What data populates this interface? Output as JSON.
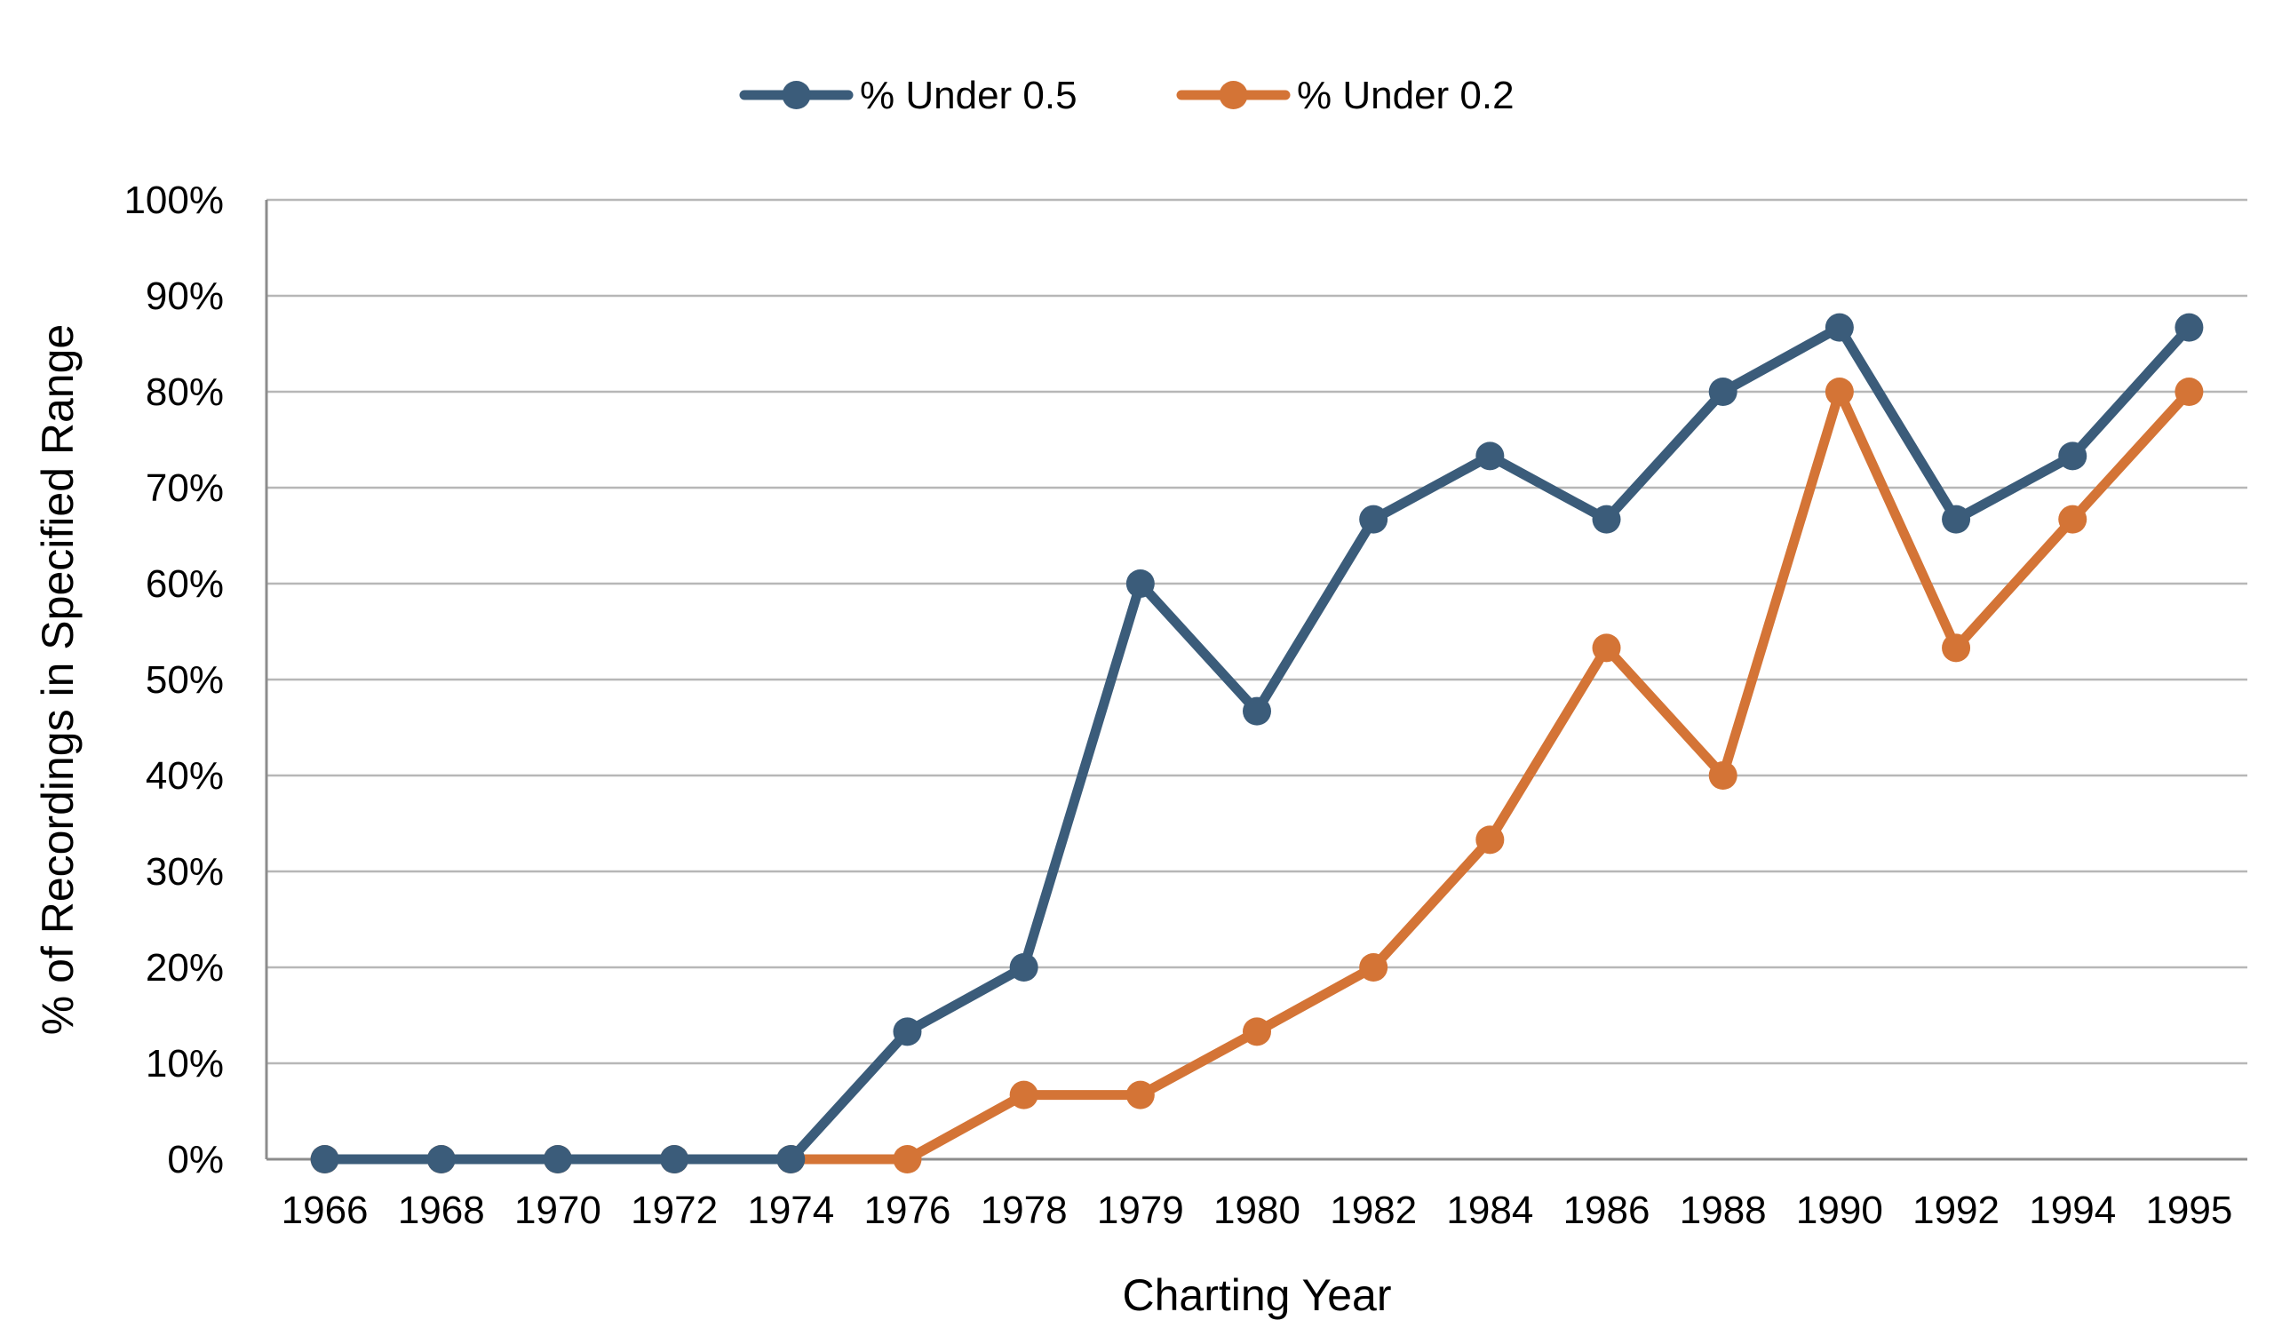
{
  "chart_data": {
    "type": "line",
    "title": "",
    "xlabel": "Charting Year",
    "ylabel": "% of Recordings in Specified Range",
    "categories": [
      "1966",
      "1968",
      "1970",
      "1972",
      "1974",
      "1976",
      "1978",
      "1979",
      "1980",
      "1982",
      "1984",
      "1986",
      "1988",
      "1990",
      "1992",
      "1994",
      "1995"
    ],
    "ylim": [
      0,
      100
    ],
    "ytick_labels": [
      "0%",
      "10%",
      "20%",
      "30%",
      "40%",
      "50%",
      "60%",
      "70%",
      "80%",
      "90%",
      "100%"
    ],
    "ytick_values": [
      0,
      10,
      20,
      30,
      40,
      50,
      60,
      70,
      80,
      90,
      100
    ],
    "grid": true,
    "legend_position": "top-center",
    "series": [
      {
        "name": "% Under 0.5",
        "color": "#3b5c7a",
        "values": [
          0,
          0,
          0,
          0,
          0,
          13.3,
          20,
          60,
          46.7,
          66.7,
          73.3,
          66.7,
          80,
          86.7,
          66.7,
          73.3,
          86.7
        ]
      },
      {
        "name": "% Under 0.2",
        "color": "#d47436",
        "values": [
          0,
          0,
          0,
          0,
          0,
          0,
          6.7,
          6.7,
          13.3,
          20,
          33.3,
          53.3,
          40,
          80,
          53.3,
          66.7,
          80
        ]
      }
    ]
  }
}
